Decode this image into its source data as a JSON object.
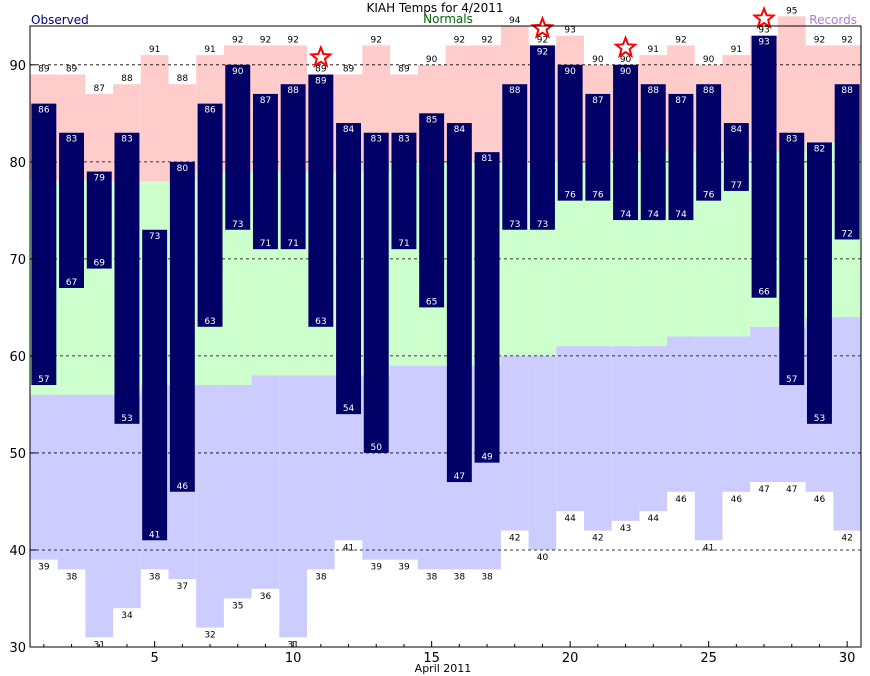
{
  "chart_data": {
    "type": "bar",
    "title": "KIAH Temps for 4/2011",
    "legend": {
      "observed": "Observed",
      "normals": "Normals",
      "records": "Records"
    },
    "xlabel": "April 2011",
    "xlim": [
      0.5,
      30.5
    ],
    "ylim": [
      30,
      94
    ],
    "x_ticks": [
      5,
      10,
      15,
      20,
      25,
      30
    ],
    "y_ticks": [
      30,
      40,
      50,
      60,
      70,
      80,
      90
    ],
    "grid": "dashed horizontal at 40, 50, 60, 70, 80, 90",
    "colors": {
      "observed": "#000066",
      "normal_band": "#ccffcc",
      "record_high_band": "#ffcccc",
      "record_low_band": "#ccccff",
      "record_star": "#ff0000",
      "observed_legend": "#000080",
      "normals_legend": "#006400",
      "records_legend": "#b07ad8"
    },
    "days": [
      1,
      2,
      3,
      4,
      5,
      6,
      7,
      8,
      9,
      10,
      11,
      12,
      13,
      14,
      15,
      16,
      17,
      18,
      19,
      20,
      21,
      22,
      23,
      24,
      25,
      26,
      27,
      28,
      29,
      30
    ],
    "observed_high": [
      86,
      83,
      79,
      83,
      73,
      80,
      86,
      90,
      87,
      88,
      89,
      84,
      83,
      83,
      85,
      84,
      81,
      88,
      92,
      90,
      87,
      90,
      88,
      87,
      88,
      84,
      93,
      83,
      82,
      88
    ],
    "observed_low": [
      57,
      67,
      69,
      53,
      41,
      46,
      63,
      73,
      71,
      71,
      63,
      54,
      50,
      71,
      65,
      47,
      49,
      73,
      73,
      76,
      76,
      74,
      74,
      74,
      76,
      77,
      66,
      57,
      53,
      72
    ],
    "record_high": [
      89,
      89,
      87,
      88,
      91,
      88,
      91,
      92,
      92,
      92,
      89,
      89,
      92,
      89,
      90,
      92,
      92,
      94,
      92,
      93,
      90,
      90,
      91,
      92,
      90,
      91,
      93,
      95,
      92,
      92
    ],
    "record_low": [
      39,
      38,
      31,
      34,
      38,
      37,
      32,
      35,
      36,
      31,
      38,
      41,
      39,
      39,
      38,
      38,
      38,
      42,
      40,
      44,
      42,
      43,
      44,
      46,
      41,
      46,
      47,
      47,
      46,
      42
    ],
    "normal_high": [
      78,
      78,
      78,
      78,
      78,
      78,
      79,
      79,
      79,
      79,
      79,
      79,
      79,
      80,
      80,
      80,
      80,
      80,
      80,
      80,
      80,
      81,
      81,
      81,
      81,
      81,
      81,
      81,
      82,
      82
    ],
    "normal_low": [
      56,
      56,
      56,
      56,
      57,
      57,
      57,
      57,
      58,
      58,
      58,
      58,
      58,
      59,
      59,
      59,
      59,
      60,
      60,
      61,
      61,
      61,
      61,
      62,
      62,
      62,
      63,
      63,
      64,
      64
    ],
    "record_set_days": [
      11,
      19,
      22,
      27
    ]
  }
}
